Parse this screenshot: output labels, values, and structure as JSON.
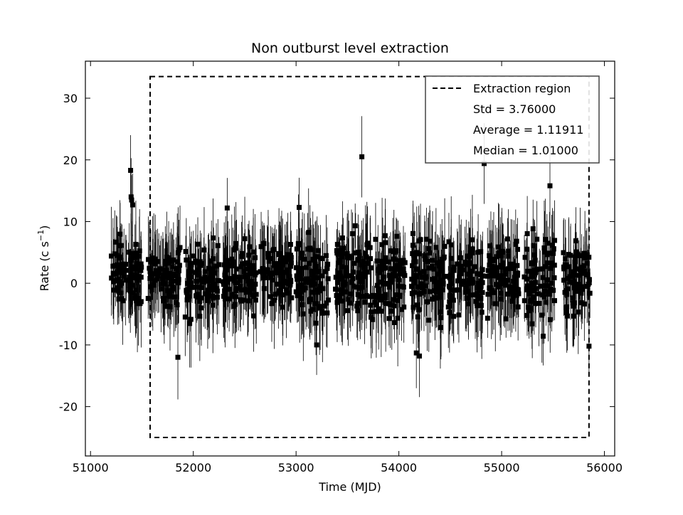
{
  "chart_data": {
    "type": "scatter",
    "title": "Non outburst level extraction",
    "xlabel": "Time (MJD)",
    "ylabel": "Rate (c s",
    "ylabel_sup": "−1",
    "ylabel_close": ")",
    "xlim": [
      50950,
      56100
    ],
    "ylim": [
      -28,
      36
    ],
    "xticks": [
      51000,
      52000,
      53000,
      54000,
      55000,
      56000
    ],
    "yticks": [
      -20,
      -10,
      0,
      10,
      20,
      30
    ],
    "xtick_labels": [
      "51000",
      "52000",
      "53000",
      "54000",
      "55000",
      "56000"
    ],
    "ytick_labels": [
      "-20",
      "-10",
      "0",
      "10",
      "20",
      "30"
    ],
    "grid": false,
    "legend_position": "top-right",
    "legend": {
      "line_label": "Extraction region",
      "stats": [
        "Std = 3.76000",
        "Average = 1.11911",
        "Median = 1.01000"
      ]
    },
    "extraction_region": {
      "x0": 51580,
      "x1": 55850,
      "y0": -25,
      "y1": 33.5
    },
    "observing_seasons": [
      {
        "x0": 51200,
        "x1": 51500,
        "mean": 1.5,
        "spread": 3.5
      },
      {
        "x0": 51560,
        "x1": 51880,
        "mean": 1.2,
        "spread": 3.0
      },
      {
        "x0": 51920,
        "x1": 52250,
        "mean": 0.5,
        "spread": 3.8
      },
      {
        "x0": 52290,
        "x1": 52620,
        "mean": 0.8,
        "spread": 3.6
      },
      {
        "x0": 52650,
        "x1": 52960,
        "mean": 1.2,
        "spread": 3.2
      },
      {
        "x0": 53000,
        "x1": 53320,
        "mean": 1.0,
        "spread": 4.5
      },
      {
        "x0": 53380,
        "x1": 53700,
        "mean": 1.5,
        "spread": 3.6
      },
      {
        "x0": 53720,
        "x1": 54060,
        "mean": 0.6,
        "spread": 4.2
      },
      {
        "x0": 54120,
        "x1": 54450,
        "mean": 1.0,
        "spread": 4.5
      },
      {
        "x0": 54480,
        "x1": 54820,
        "mean": 1.2,
        "spread": 4.2
      },
      {
        "x0": 54860,
        "x1": 55180,
        "mean": 1.0,
        "spread": 3.8
      },
      {
        "x0": 55220,
        "x1": 55520,
        "mean": 1.5,
        "spread": 4.5
      },
      {
        "x0": 55600,
        "x1": 55860,
        "mean": 0.8,
        "spread": 4.2
      }
    ],
    "notable_points": [
      {
        "x": 51390,
        "y": 18.3
      },
      {
        "x": 51400,
        "y": 13.5
      },
      {
        "x": 51410,
        "y": 12.7
      },
      {
        "x": 51395,
        "y": 14.0
      },
      {
        "x": 51850,
        "y": -12.0
      },
      {
        "x": 52330,
        "y": 12.2
      },
      {
        "x": 53030,
        "y": 12.3
      },
      {
        "x": 53200,
        "y": -10.0
      },
      {
        "x": 53640,
        "y": 20.5
      },
      {
        "x": 54170,
        "y": -11.3
      },
      {
        "x": 54200,
        "y": -11.8
      },
      {
        "x": 54830,
        "y": 19.4
      },
      {
        "x": 55470,
        "y": 15.8
      },
      {
        "x": 55850,
        "y": -10.2
      }
    ]
  }
}
